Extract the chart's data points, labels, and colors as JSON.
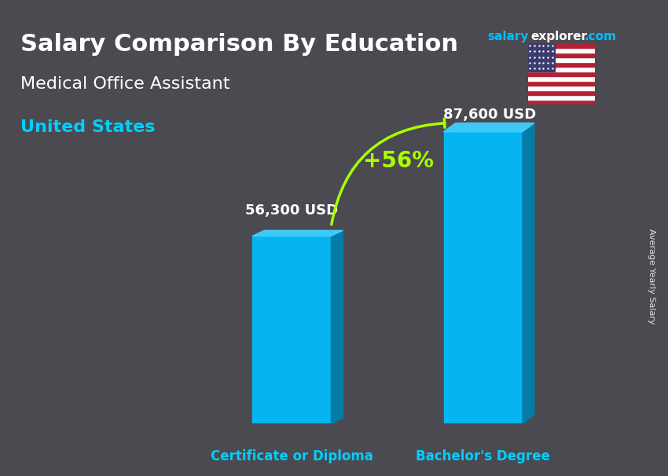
{
  "title": "Salary Comparison By Education",
  "subtitle": "Medical Office Assistant",
  "country": "United States",
  "categories": [
    "Certificate or Diploma",
    "Bachelor's Degree"
  ],
  "values": [
    56300,
    87600
  ],
  "value_labels": [
    "56,300 USD",
    "87,600 USD"
  ],
  "pct_change": "+56%",
  "bar_color_face": "#00BFFF",
  "bar_color_dark": "#0080B0",
  "bar_color_top": "#40D0FF",
  "bar_width": 0.35,
  "bg_color": "#3a3a3a",
  "title_color": "#FFFFFF",
  "subtitle_color": "#FFFFFF",
  "country_color": "#00CFFF",
  "label_color": "#FFFFFF",
  "xticklabel_color": "#00CFFF",
  "pct_color": "#AAFF00",
  "arrow_color": "#AAFF00",
  "site_salary_color": "#00BFFF",
  "site_explorer_color": "#FFFFFF",
  "site_com_color": "#00BFFF",
  "ylabel_text": "Average Yearly Salary",
  "site_text": "salaryexplorer.com",
  "ylim": [
    0,
    110000
  ],
  "figsize": [
    8.5,
    6.06
  ]
}
